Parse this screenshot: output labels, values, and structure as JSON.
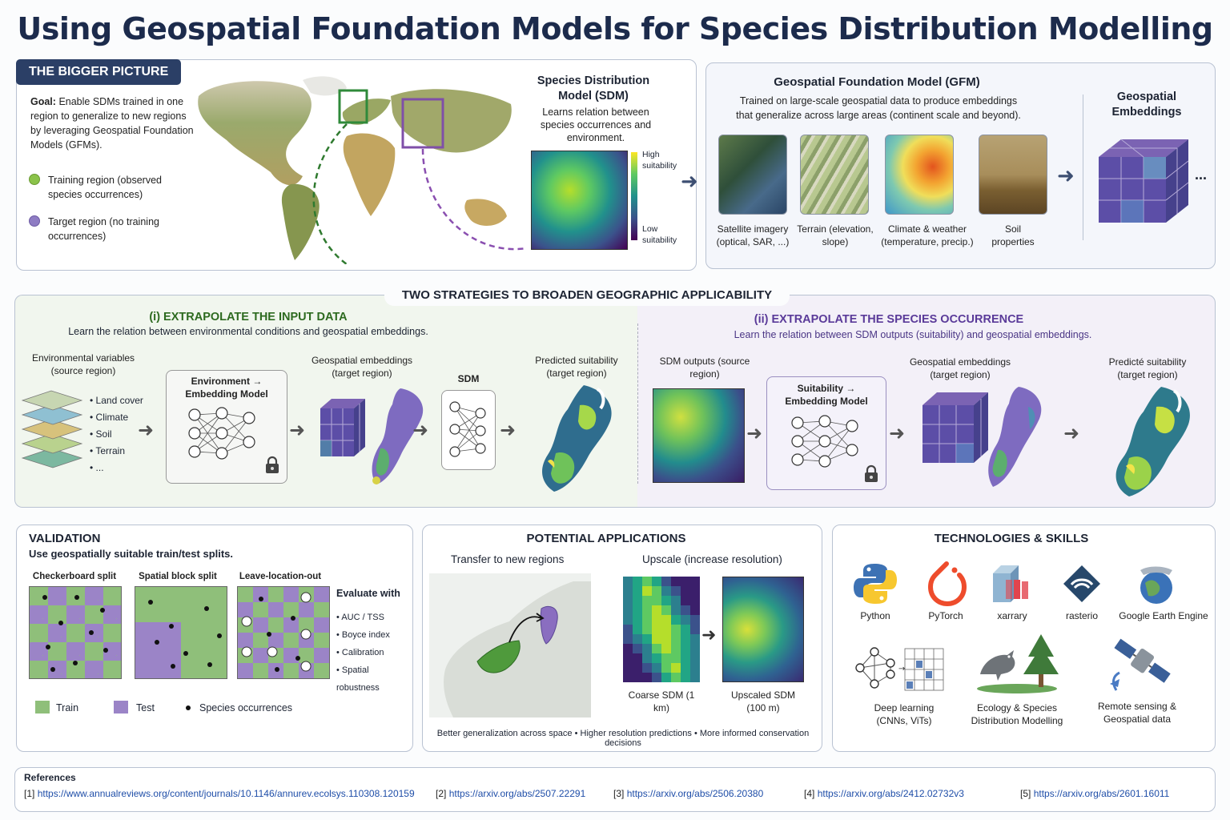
{
  "title": "Using Geospatial Foundation Models for Species Distribution Modelling",
  "bigger_picture": {
    "tag": "THE BIGGER PICTURE",
    "goal_label": "Goal:",
    "goal_text": "Enable SDMs trained in one region to generalize to new regions by leveraging Geospatial Foundation Models (GFMs).",
    "legend": [
      {
        "label": "Training region (observed species occurrences)",
        "color": "#8bc34a"
      },
      {
        "label": "Target region (no training occurrences)",
        "color": "#8e7cc3"
      }
    ]
  },
  "sdm": {
    "title": "Species Distribution Model (SDM)",
    "desc": "Learns relation between species occurrences and environment.",
    "high": "High suitability",
    "low": "Low suitability"
  },
  "gfm": {
    "title": "Geospatial Foundation Model (GFM)",
    "desc": "Trained on large-scale geospatial data to produce embeddings that generalize across large areas (continent scale and beyond).",
    "inputs": [
      {
        "label": "Satellite imagery (optical, SAR, ...)"
      },
      {
        "label": "Terrain (elevation, slope)"
      },
      {
        "label": "Climate & weather (temperature, precip.)"
      },
      {
        "label": "Soil properties"
      }
    ],
    "embeddings_label": "Geospatial Embeddings",
    "ellipsis": "..."
  },
  "strategies": {
    "header": "TWO STRATEGIES TO BROADEN GEOGRAPHIC APPLICABILITY",
    "s1": {
      "title": "(i)  EXTRAPOLATE THE INPUT DATA",
      "sub": "Learn the relation between environmental conditions and geospatial embeddings.",
      "env_label": "Environmental variables (source region)",
      "env_items": [
        "Land cover",
        "Climate",
        "Soil",
        "Terrain",
        "..."
      ],
      "model_label": "Environment → Embedding Model",
      "emb_label": "Geospatial embeddings (target region)",
      "sdm_label": "SDM",
      "pred_label": "Predicted suitability (target region)"
    },
    "s2": {
      "title": "(ii)  EXTRAPOLATE THE SPECIES OCCURRENCE",
      "sub": "Learn the relation between SDM outputs (suitability) and geospatial embeddings.",
      "sdm_out_label": "SDM outputs (source region)",
      "model_label": "Suitability → Embedding Model",
      "emb_label": "Geospatial embeddings (target region)",
      "pred_label": "Predicté suitability (target region)"
    }
  },
  "validation": {
    "title": "VALIDATION",
    "sub": "Use geospatially suitable train/test splits.",
    "splits": [
      "Checkerboard split",
      "Spatial block split",
      "Leave-location-out"
    ],
    "evaluate_label": "Evaluate with",
    "metrics": [
      "AUC / TSS",
      "Boyce index",
      "Calibration",
      "Spatial robustness"
    ],
    "legend": {
      "train": "Train",
      "test": "Test",
      "occ": "Species occurrences"
    },
    "colors": {
      "train": "#8fbf7a",
      "test": "#9b84c7"
    }
  },
  "applications": {
    "title": "POTENTIAL APPLICATIONS",
    "transfer": "Transfer to new regions",
    "upscale": "Upscale (increase resolution)",
    "coarse": "Coarse SDM (1 km)",
    "upscaled": "Upscaled SDM (100 m)",
    "footer": "Better generalization across space  •  Higher resolution predictions  •  More informed conservation decisions"
  },
  "tech": {
    "title": "TECHNOLOGIES & SKILLS",
    "row1": [
      "Python",
      "PyTorch",
      "xarrary",
      "rasterio",
      "Google Earth Engine"
    ],
    "row2": [
      "Deep learning (CNNs, ViTs)",
      "Ecology & Species Distribution Modelling",
      "Remote sensing & Geospatial data"
    ]
  },
  "references": {
    "title": "References",
    "items": [
      {
        "num": "[1]",
        "url": "https://www.annualreviews.org/content/journals/10.1146/annurev.ecolsys.110308.120159"
      },
      {
        "num": "[2]",
        "url": "https://arxiv.org/abs/2507.22291"
      },
      {
        "num": "[3]",
        "url": "https://arxiv.org/abs/2506.20380"
      },
      {
        "num": "[4]",
        "url": "https://arxiv.org/abs/2412.02732v3"
      },
      {
        "num": "[5]",
        "url": "https://arxiv.org/abs/2601.16011"
      }
    ]
  }
}
